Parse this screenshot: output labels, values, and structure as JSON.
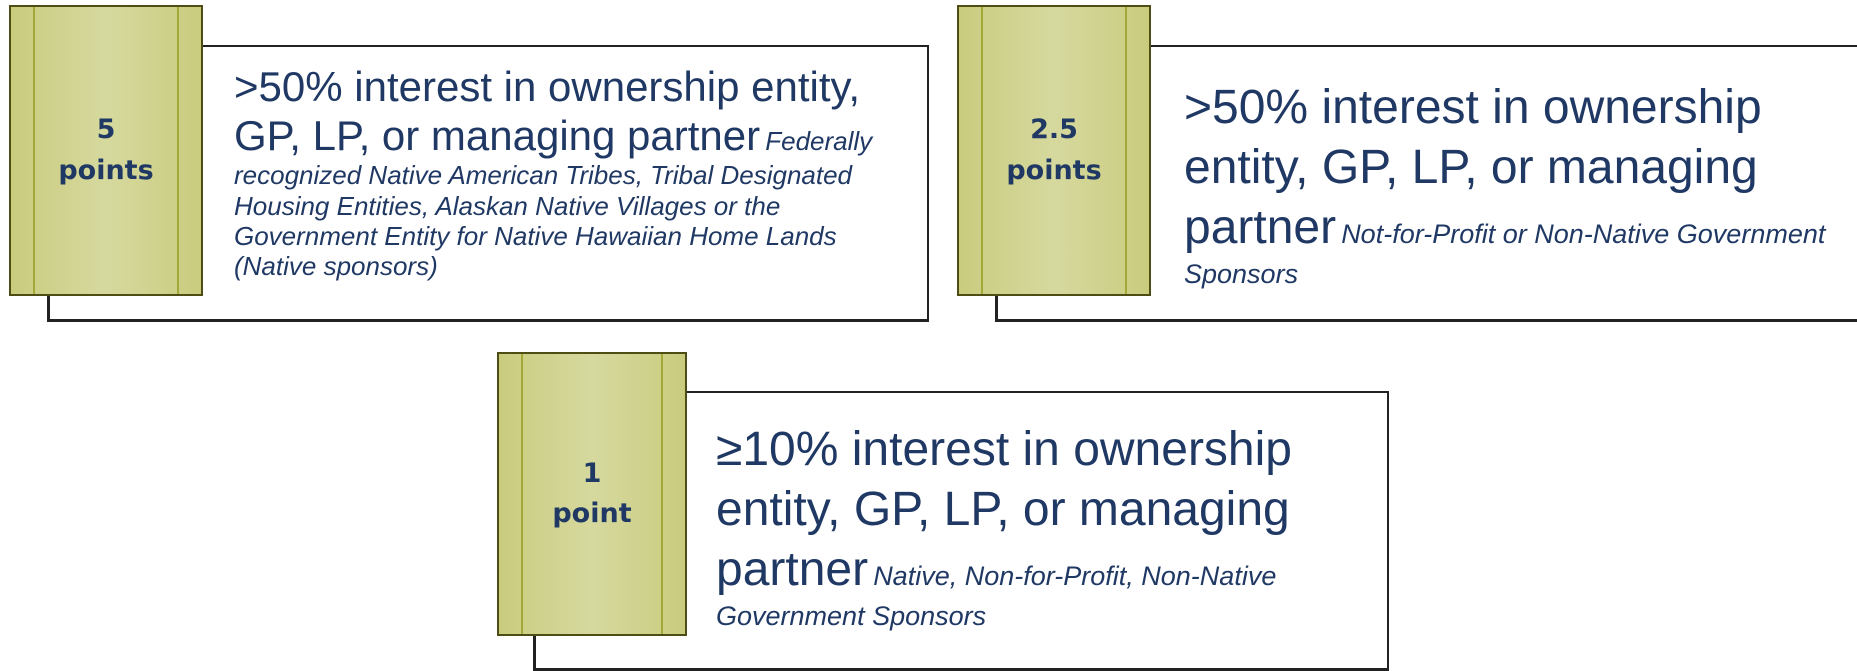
{
  "cards": [
    {
      "number": "5",
      "unit": "points",
      "main": ">50% interest in ownership entity, GP, LP, or managing partner",
      "note": "Federally recognized Native American Tribes, Tribal Designated Housing Entities, Alaskan Native Villages or the Government Entity for Native Hawaiian Home Lands (Native sponsors)"
    },
    {
      "number": "2.5",
      "unit": "points",
      "main": ">50%  interest in ownership entity, GP, LP, or managing partner",
      "note": "Not-for-Profit or Non-Native Government Sponsors"
    },
    {
      "number": "1",
      "unit": "point",
      "main": "≥10% interest in ownership entity, GP, LP, or managing partner",
      "note": "Native, Non-for-Profit, Non-Native Government Sponsors"
    }
  ]
}
